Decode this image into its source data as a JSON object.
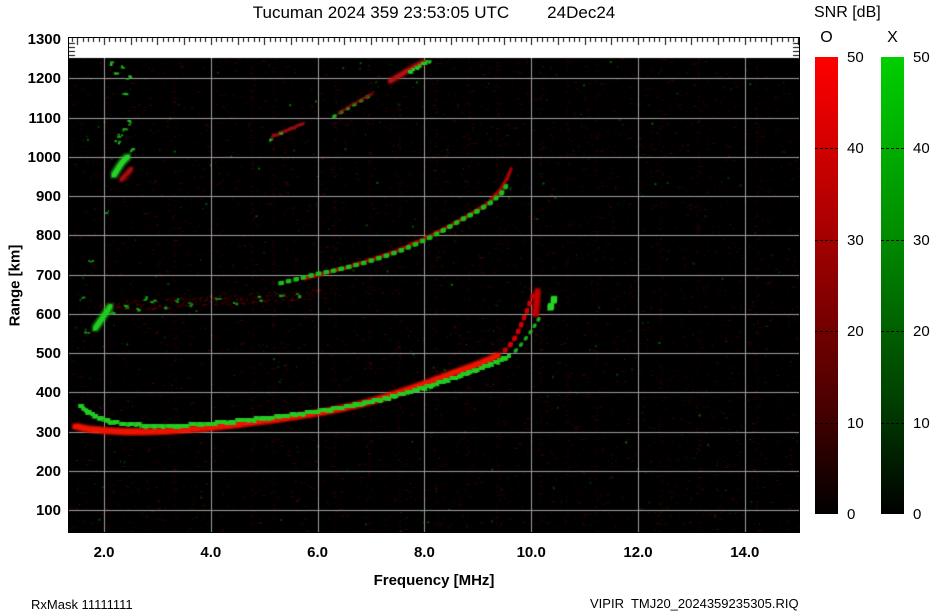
{
  "title": {
    "main": "Tucuman 2024 359 23:53:05 UTC",
    "date": "24Dec24"
  },
  "snr": {
    "title": "SNR [dB]",
    "o_label": "O",
    "x_label": "X",
    "ticks": [
      "50",
      "40",
      "30",
      "20",
      "10",
      "0"
    ],
    "o_top_color": "#ff0000",
    "x_top_color": "#00cf00"
  },
  "axes": {
    "ylabel": "Range [km]",
    "xlabel": "Frequency [MHz]",
    "y_tick_labels": [
      "1300",
      "1200",
      "1100",
      "1000",
      "900",
      "800",
      "700",
      "600",
      "500",
      "400",
      "300",
      "200",
      "100"
    ],
    "x_tick_labels": [
      "2.0",
      "4.0",
      "6.0",
      "8.0",
      "10.0",
      "12.0",
      "14.0"
    ]
  },
  "footer": {
    "left": "RxMask 11111111",
    "right": "VIPIR  TMJ20_2024359235305.RIQ"
  },
  "chart_data": {
    "type": "heatmap",
    "title": "Tucuman 2024 359 23:53:05 UTC  24Dec24",
    "xlabel": "Frequency [MHz]",
    "ylabel": "Range [km]",
    "xlim": [
      1.35,
      15.0
    ],
    "ylim": [
      40,
      1300
    ],
    "x_tick_values": [
      2,
      4,
      6,
      8,
      10,
      12,
      14
    ],
    "y_tick_values": [
      100,
      200,
      300,
      400,
      500,
      600,
      700,
      800,
      900,
      1000,
      1100,
      1200,
      1300
    ],
    "grid": true,
    "colorbar": {
      "label": "SNR [dB]",
      "min": 0,
      "max": 50,
      "o_polarization_color": "red",
      "x_polarization_color": "green"
    },
    "rfi_stripe_freqs": [
      2.05,
      3.3,
      4.75,
      5.15,
      6.3,
      6.95,
      7.5,
      8.2,
      8.8,
      9.35,
      10.15,
      10.65,
      11.2,
      12.4,
      13.1,
      14.2
    ],
    "noise_seed": 11,
    "series": [
      {
        "name": "f2-spread-band",
        "mode": "band",
        "color": "#8c0000",
        "width": 2,
        "spread_km": 14,
        "layer": 0,
        "points": [
          [
            1.9,
            614
          ],
          [
            2.4,
            621
          ],
          [
            3.0,
            628
          ],
          [
            3.7,
            633
          ],
          [
            4.4,
            638
          ],
          [
            5.1,
            642
          ],
          [
            5.7,
            647
          ],
          [
            6.15,
            652
          ]
        ]
      },
      {
        "name": "o-trace-1hop",
        "mode": "solid",
        "color": "#ef1500",
        "width": 4,
        "layer": 1,
        "points": [
          [
            1.45,
            314
          ],
          [
            1.7,
            307
          ],
          [
            2.0,
            303
          ],
          [
            2.4,
            300
          ],
          [
            2.8,
            300
          ],
          [
            3.2,
            302
          ],
          [
            3.6,
            306
          ],
          [
            4.0,
            311
          ],
          [
            4.4,
            317
          ],
          [
            4.8,
            324
          ],
          [
            5.2,
            331
          ],
          [
            5.6,
            339
          ],
          [
            6.0,
            348
          ],
          [
            6.4,
            358
          ],
          [
            6.8,
            370
          ],
          [
            7.2,
            385
          ],
          [
            7.6,
            403
          ],
          [
            8.0,
            422
          ],
          [
            8.4,
            442
          ],
          [
            8.7,
            457
          ],
          [
            9.0,
            472
          ],
          [
            9.2,
            483
          ],
          [
            9.4,
            496
          ]
        ]
      },
      {
        "name": "o-trace-1hop-tail",
        "mode": "dots",
        "color": "#d40000",
        "width": 4,
        "layer": 1,
        "points": [
          [
            9.5,
            506
          ],
          [
            9.6,
            520
          ],
          [
            9.7,
            540
          ],
          [
            9.78,
            562
          ],
          [
            9.86,
            588
          ],
          [
            9.94,
            615
          ],
          [
            10.0,
            638
          ],
          [
            10.06,
            655
          ]
        ]
      },
      {
        "name": "x-trace-1hop",
        "mode": "blocks",
        "color": "#21cd21",
        "width": 4,
        "layer": 1,
        "points": [
          [
            1.55,
            368
          ],
          [
            1.7,
            350
          ],
          [
            1.9,
            336
          ],
          [
            2.1,
            327
          ],
          [
            2.4,
            320
          ],
          [
            2.8,
            316
          ],
          [
            3.2,
            315
          ],
          [
            3.6,
            317
          ],
          [
            4.0,
            321
          ],
          [
            4.4,
            326
          ],
          [
            4.8,
            332
          ],
          [
            5.2,
            338
          ],
          [
            5.6,
            345
          ],
          [
            6.0,
            352
          ],
          [
            6.4,
            361
          ],
          [
            6.8,
            371
          ],
          [
            7.2,
            383
          ],
          [
            7.6,
            397
          ],
          [
            8.0,
            413
          ],
          [
            8.4,
            430
          ],
          [
            8.8,
            449
          ],
          [
            9.1,
            464
          ],
          [
            9.4,
            481
          ],
          [
            9.6,
            494
          ]
        ]
      },
      {
        "name": "x-trace-1hop-tail",
        "mode": "dots",
        "color": "#1db41d",
        "width": 3,
        "layer": 1,
        "points": [
          [
            9.7,
            505
          ],
          [
            9.8,
            520
          ],
          [
            9.9,
            538
          ],
          [
            10.0,
            556
          ],
          [
            10.1,
            578
          ],
          [
            10.2,
            600
          ]
        ]
      },
      {
        "name": "x-critical-blob",
        "mode": "dots",
        "color": "#25d425",
        "width": 6,
        "layer": 1,
        "points": [
          [
            10.36,
            616
          ],
          [
            10.42,
            634
          ],
          [
            10.46,
            650
          ]
        ]
      },
      {
        "name": "o-critical-streak",
        "mode": "solid",
        "color": "#c30000",
        "width": 4,
        "layer": 1,
        "points": [
          [
            10.08,
            598
          ],
          [
            10.1,
            630
          ],
          [
            10.12,
            662
          ]
        ]
      },
      {
        "name": "o-trace-2hop",
        "mode": "diffuse",
        "color": "#b80000",
        "width": 3,
        "layer": 1,
        "points": [
          [
            5.7,
            688
          ],
          [
            6.1,
            702
          ],
          [
            6.5,
            717
          ],
          [
            6.9,
            734
          ],
          [
            7.3,
            752
          ],
          [
            7.7,
            773
          ],
          [
            8.1,
            798
          ],
          [
            8.5,
            826
          ],
          [
            8.9,
            856
          ],
          [
            9.2,
            884
          ],
          [
            9.4,
            912
          ],
          [
            9.55,
            945
          ],
          [
            9.63,
            972
          ]
        ]
      },
      {
        "name": "x-trace-2hop",
        "mode": "dots",
        "color": "#1bbf1b",
        "width": 4,
        "layer": 1,
        "points": [
          [
            5.3,
            678
          ],
          [
            5.65,
            690
          ],
          [
            6.0,
            702
          ],
          [
            6.3,
            710
          ],
          [
            6.6,
            720
          ],
          [
            6.9,
            731
          ],
          [
            7.2,
            744
          ],
          [
            7.5,
            758
          ],
          [
            7.8,
            775
          ],
          [
            8.1,
            794
          ],
          [
            8.4,
            816
          ],
          [
            8.7,
            840
          ],
          [
            9.0,
            862
          ],
          [
            9.25,
            884
          ],
          [
            9.45,
            908
          ],
          [
            9.58,
            936
          ]
        ]
      },
      {
        "name": "x-streak-left",
        "mode": "solid",
        "color": "#22cc22",
        "width": 4,
        "layer": 1,
        "points": [
          [
            1.83,
            562
          ],
          [
            1.93,
            582
          ],
          [
            2.03,
            602
          ],
          [
            2.13,
            622
          ]
        ]
      },
      {
        "name": "band-green-specks",
        "mode": "specks",
        "color": "#18a818",
        "width": 3,
        "layer": 1,
        "points": [
          [
            2.4,
            622
          ],
          [
            2.62,
            613
          ],
          [
            2.9,
            631
          ],
          [
            3.12,
            621
          ],
          [
            3.35,
            636
          ],
          [
            3.6,
            627
          ],
          [
            4.1,
            638
          ],
          [
            4.45,
            629
          ],
          [
            4.9,
            641
          ],
          [
            5.3,
            646
          ],
          [
            2.12,
            607
          ],
          [
            2.75,
            641
          ],
          [
            5.6,
            650
          ]
        ]
      },
      {
        "name": "sporadic-green-upper-left",
        "mode": "specks",
        "color": "#1fbf1f",
        "width": 3,
        "layer": 1,
        "points": [
          [
            2.2,
            1216
          ],
          [
            2.33,
            1229
          ],
          [
            2.43,
            1204
          ],
          [
            2.36,
            1162
          ],
          [
            2.28,
            1056
          ],
          [
            2.36,
            1073
          ],
          [
            2.44,
            1089
          ],
          [
            2.23,
            1041
          ],
          [
            2.52,
            1021
          ],
          [
            2.1,
            1240
          ]
        ]
      },
      {
        "name": "es-green-streak",
        "mode": "solid",
        "color": "#27d427",
        "width": 4,
        "layer": 1,
        "points": [
          [
            2.18,
            952
          ],
          [
            2.27,
            972
          ],
          [
            2.35,
            988
          ],
          [
            2.46,
            1003
          ]
        ]
      },
      {
        "name": "es-red-streak",
        "mode": "solid",
        "color": "#a31111",
        "width": 3,
        "layer": 1,
        "points": [
          [
            2.32,
            941
          ],
          [
            2.44,
            958
          ],
          [
            2.52,
            971
          ]
        ]
      },
      {
        "name": "hop3-seg-a-red",
        "mode": "diffuse",
        "color": "#9c0f0f",
        "width": 3,
        "layer": 1,
        "points": [
          [
            5.15,
            1052
          ],
          [
            5.45,
            1068
          ],
          [
            5.75,
            1086
          ]
        ]
      },
      {
        "name": "hop3-seg-a-green",
        "mode": "specks",
        "color": "#1cb41c",
        "width": 3,
        "layer": 1,
        "points": [
          [
            5.08,
            1047
          ],
          [
            5.3,
            1058
          ]
        ]
      },
      {
        "name": "hop3-seg-b-green",
        "mode": "dots",
        "color": "#1cb41c",
        "width": 3,
        "layer": 1,
        "points": [
          [
            6.3,
            1102
          ],
          [
            6.55,
            1122
          ],
          [
            6.8,
            1142
          ],
          [
            7.0,
            1158
          ]
        ]
      },
      {
        "name": "hop3-seg-b-red",
        "mode": "diffuse",
        "color": "#8f0d0d",
        "width": 2,
        "layer": 1,
        "points": [
          [
            6.38,
            1110
          ],
          [
            6.62,
            1130
          ],
          [
            6.88,
            1150
          ],
          [
            7.06,
            1163
          ]
        ]
      },
      {
        "name": "hop3-seg-c-red",
        "mode": "solid",
        "color": "#b51414",
        "width": 3,
        "layer": 1,
        "points": [
          [
            7.35,
            1192
          ],
          [
            7.6,
            1212
          ],
          [
            7.85,
            1232
          ],
          [
            8.0,
            1242
          ]
        ]
      },
      {
        "name": "hop3-seg-c-green",
        "mode": "blocks",
        "color": "#1fc91f",
        "width": 3,
        "layer": 1,
        "points": [
          [
            7.72,
            1216
          ],
          [
            7.95,
            1234
          ],
          [
            8.12,
            1246
          ]
        ]
      },
      {
        "name": "stray-green-dots",
        "mode": "specks",
        "color": "#1aa81a",
        "width": 2,
        "layer": 1,
        "points": [
          [
            1.66,
            558
          ],
          [
            1.74,
            738
          ],
          [
            2.05,
            862
          ],
          [
            1.58,
            640
          ]
        ]
      }
    ]
  }
}
